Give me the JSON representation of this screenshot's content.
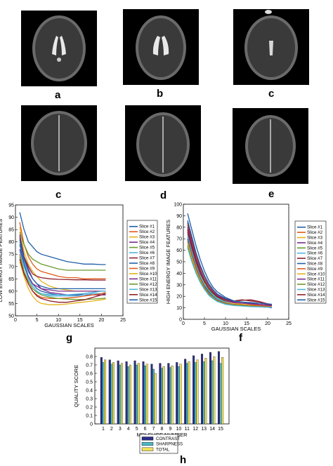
{
  "panel_labels": {
    "a": "a",
    "b": "b",
    "c1": "c",
    "c2": "c",
    "d": "d",
    "e": "e",
    "g": "g",
    "f": "f",
    "h": "h"
  },
  "chart_data": [
    {
      "type": "line",
      "ylabel": "LOW ENERGY IMAGE FEATURES",
      "xlabel": "GAUSSIAN SCALES",
      "xlim": [
        0,
        25
      ],
      "ylim": [
        50,
        95
      ],
      "xticks": [
        0,
        5,
        10,
        15,
        20,
        25
      ],
      "yticks": [
        50,
        55,
        60,
        65,
        70,
        75,
        80,
        85,
        90,
        95
      ],
      "legend_position": "outside-right",
      "x": [
        1,
        2,
        3,
        4,
        5,
        6,
        8,
        10,
        12,
        14,
        16,
        18,
        20,
        21
      ],
      "series": [
        {
          "name": "Slice #1",
          "color": "#1f5fa8",
          "values": [
            92,
            85,
            80,
            78,
            76,
            75,
            74,
            73,
            72,
            71.5,
            71,
            71,
            70.8,
            70.8
          ]
        },
        {
          "name": "Slice #2",
          "color": "#e05a1a",
          "values": [
            88,
            79,
            74,
            71,
            69,
            68,
            67,
            66,
            65.5,
            65.5,
            65,
            65,
            65,
            65
          ]
        },
        {
          "name": "Slice #3",
          "color": "#e3b21a",
          "values": [
            86,
            76,
            71,
            68,
            66,
            64,
            62,
            61,
            60.5,
            60,
            60,
            60,
            60,
            60
          ]
        },
        {
          "name": "Slice #4",
          "color": "#7a2c8c",
          "values": [
            83,
            74,
            69,
            65,
            63,
            61,
            59.5,
            59,
            58.5,
            58.5,
            58.5,
            58.5,
            58.5,
            58.5
          ]
        },
        {
          "name": "Slice #5",
          "color": "#6a9a2c",
          "values": [
            84,
            79,
            75,
            73,
            72,
            71,
            70,
            69,
            68.5,
            68.5,
            68.5,
            68.5,
            68.5,
            68.5
          ]
        },
        {
          "name": "Slice #6",
          "color": "#4fb6e0",
          "values": [
            80,
            72,
            66,
            62,
            60,
            59,
            58,
            58,
            58,
            58,
            58.5,
            59,
            59,
            59
          ]
        },
        {
          "name": "Slice #7",
          "color": "#8f1d2c",
          "values": [
            82,
            74,
            70,
            67,
            66,
            65.5,
            65,
            64.8,
            64.7,
            64.6,
            64.6,
            64.5,
            64.5,
            64.5
          ]
        },
        {
          "name": "Slice #8",
          "color": "#1f5fa8",
          "values": [
            79,
            71,
            66,
            63,
            61,
            60,
            59,
            58.5,
            58.5,
            58.5,
            59,
            59.5,
            60,
            60
          ]
        },
        {
          "name": "Slice #9",
          "color": "#e05a1a",
          "values": [
            75,
            68,
            63,
            60,
            58.5,
            57.5,
            57,
            57,
            57.2,
            57.5,
            58,
            58.5,
            59,
            59.5
          ]
        },
        {
          "name": "Slice #10",
          "color": "#e3b21a",
          "values": [
            72,
            66,
            61,
            58,
            56,
            55,
            54.5,
            54.5,
            54.8,
            55.2,
            55.6,
            56,
            56.5,
            56.8
          ]
        },
        {
          "name": "Slice #11",
          "color": "#7a2c8c",
          "values": [
            77,
            70,
            66,
            63,
            62,
            61,
            60.5,
            60,
            60,
            60,
            60,
            60,
            60,
            60
          ]
        },
        {
          "name": "Slice #12",
          "color": "#6a9a2c",
          "values": [
            74,
            68,
            64,
            61,
            59.5,
            58.5,
            57.5,
            57,
            56.8,
            56.6,
            56.6,
            56.8,
            57,
            57.2
          ]
        },
        {
          "name": "Slice #13",
          "color": "#4fb6e0",
          "values": [
            76,
            70,
            65,
            62,
            60,
            59,
            58.5,
            58.5,
            58.5,
            58.8,
            59,
            59.5,
            60,
            60
          ]
        },
        {
          "name": "Slice #14",
          "color": "#8f1d2c",
          "values": [
            73,
            67,
            63,
            60,
            58,
            57,
            56,
            55.5,
            55.5,
            56,
            56.5,
            57.5,
            58.5,
            59
          ]
        },
        {
          "name": "Slice #15",
          "color": "#1f5fa8",
          "values": [
            81,
            73,
            68,
            65,
            63,
            62,
            61,
            61,
            61,
            61,
            61,
            61,
            61,
            61
          ]
        }
      ]
    },
    {
      "type": "line",
      "ylabel": "HIGH ENERGY IMAGE FEATURES",
      "xlabel": "GAUSSIAN SCALES",
      "xlim": [
        0,
        25
      ],
      "ylim": [
        0,
        100
      ],
      "xticks": [
        0,
        5,
        10,
        15,
        20,
        25
      ],
      "yticks": [
        0,
        10,
        20,
        30,
        40,
        50,
        60,
        70,
        80,
        90,
        100
      ],
      "legend_position": "outside-right",
      "x": [
        1,
        2,
        3,
        4,
        5,
        6,
        7,
        8,
        10,
        12,
        14,
        16,
        18,
        20,
        21
      ],
      "series": [
        {
          "name": "Slice #1",
          "color": "#1f5fa8",
          "values": [
            92,
            78,
            64,
            52,
            42,
            34,
            28,
            24,
            19,
            16,
            15,
            14,
            13,
            12,
            12
          ]
        },
        {
          "name": "Slice #2",
          "color": "#e05a1a",
          "values": [
            82,
            68,
            55,
            45,
            37,
            30,
            25,
            21,
            17,
            15,
            14,
            13,
            12,
            11.5,
            11
          ]
        },
        {
          "name": "Slice #3",
          "color": "#e3b21a",
          "values": [
            78,
            64,
            52,
            42,
            34,
            28,
            23,
            20,
            16,
            14,
            13,
            12,
            11,
            11,
            11
          ]
        },
        {
          "name": "Slice #4",
          "color": "#7a2c8c",
          "values": [
            80,
            66,
            53,
            43,
            35,
            29,
            24,
            21,
            17,
            15,
            14,
            13.5,
            13,
            12.5,
            12
          ]
        },
        {
          "name": "Slice #5",
          "color": "#6a9a2c",
          "values": [
            74,
            60,
            48,
            39,
            32,
            26,
            22,
            19,
            15,
            13,
            12,
            11.5,
            11,
            11,
            10.5
          ]
        },
        {
          "name": "Slice #6",
          "color": "#4fb6e0",
          "values": [
            72,
            58,
            46,
            37,
            30,
            25,
            21,
            18,
            14.5,
            13,
            12,
            11.5,
            11,
            10.5,
            10.5
          ]
        },
        {
          "name": "Slice #7",
          "color": "#8f1d2c",
          "values": [
            84,
            70,
            57,
            46,
            38,
            31,
            26,
            22,
            18,
            16,
            17,
            16,
            15,
            13,
            12.5
          ]
        },
        {
          "name": "Slice #8",
          "color": "#1f5fa8",
          "values": [
            70,
            56,
            45,
            36,
            29,
            24,
            20,
            17,
            14,
            12.5,
            12,
            11.5,
            11,
            10.5,
            10
          ]
        },
        {
          "name": "Slice #9",
          "color": "#e05a1a",
          "values": [
            68,
            55,
            44,
            35,
            28,
            23,
            19,
            16.5,
            14,
            13,
            12.5,
            12,
            11.5,
            11,
            11
          ]
        },
        {
          "name": "Slice #10",
          "color": "#e3b21a",
          "values": [
            66,
            53,
            42,
            34,
            27,
            22,
            19,
            16,
            13.5,
            12.5,
            12,
            11.5,
            11,
            10.5,
            10.5
          ]
        },
        {
          "name": "Slice #11",
          "color": "#7a2c8c",
          "values": [
            76,
            62,
            50,
            40,
            33,
            27,
            23,
            19.5,
            16,
            14.5,
            14,
            13.5,
            13,
            12.5,
            12
          ]
        },
        {
          "name": "Slice #12",
          "color": "#6a9a2c",
          "values": [
            64,
            51,
            41,
            33,
            27,
            22,
            18.5,
            16,
            13.5,
            12.5,
            12,
            11.5,
            11,
            10.5,
            10.5
          ]
        },
        {
          "name": "Slice #13",
          "color": "#4fb6e0",
          "values": [
            62,
            50,
            40,
            32,
            26,
            21,
            18,
            15.5,
            13,
            12,
            11.5,
            11,
            10.8,
            10.5,
            10.5
          ]
        },
        {
          "name": "Slice #14",
          "color": "#8f1d2c",
          "values": [
            78,
            64,
            51,
            41,
            33,
            27,
            23,
            20,
            17,
            16,
            16.5,
            17,
            15.5,
            13.5,
            13
          ]
        },
        {
          "name": "Slice #15",
          "color": "#1f5fa8",
          "values": [
            86,
            72,
            58,
            47,
            38,
            31,
            26,
            22,
            18,
            16,
            15,
            14.5,
            14,
            13.5,
            13
          ]
        }
      ]
    },
    {
      "type": "bar",
      "ylabel": "QUALITY SCORE",
      "xlabel": "MRI SLICE NUMBER",
      "ylim": [
        0,
        0.9
      ],
      "yticks": [
        0,
        0.1,
        0.2,
        0.3,
        0.4,
        0.5,
        0.6,
        0.7,
        0.8
      ],
      "categories": [
        "1",
        "2",
        "3",
        "4",
        "5",
        "6",
        "7",
        "8",
        "9",
        "10",
        "11",
        "12",
        "13",
        "14",
        "15"
      ],
      "legend_position": "bottom-center-outside",
      "series": [
        {
          "name": "CONTRAST",
          "color": "#2b2e86",
          "values": [
            0.79,
            0.76,
            0.75,
            0.74,
            0.75,
            0.74,
            0.71,
            0.72,
            0.72,
            0.73,
            0.77,
            0.81,
            0.83,
            0.85,
            0.86
          ]
        },
        {
          "name": "SHARPNESS",
          "color": "#4fb8c8",
          "values": [
            0.73,
            0.71,
            0.7,
            0.68,
            0.7,
            0.69,
            0.65,
            0.66,
            0.67,
            0.68,
            0.72,
            0.73,
            0.74,
            0.75,
            0.72
          ]
        },
        {
          "name": "TOTAL",
          "color": "#efe05a",
          "values": [
            0.76,
            0.73,
            0.72,
            0.7,
            0.72,
            0.71,
            0.6,
            0.68,
            0.69,
            0.71,
            0.74,
            0.76,
            0.78,
            0.8,
            0.79
          ]
        }
      ]
    }
  ]
}
